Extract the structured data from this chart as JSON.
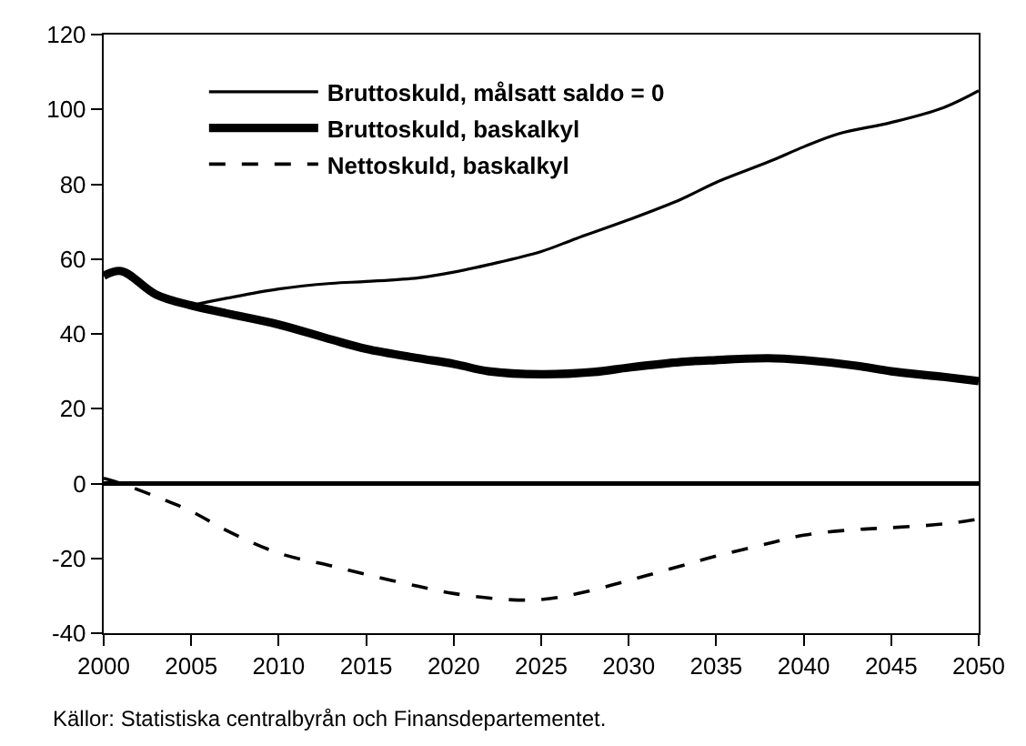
{
  "chart_data": {
    "type": "line",
    "annotations": [
      "Källor: Statistiska centralbyrån och Finansdepartementet."
    ],
    "series": [
      {
        "name": "Bruttoskuld, målsatt saldo = 0",
        "color": "#000000",
        "line_style": "solid",
        "x": [
          2005,
          2007,
          2010,
          2013,
          2015,
          2018,
          2020,
          2022,
          2025,
          2027,
          2030,
          2033,
          2035,
          2038,
          2040,
          2042,
          2045,
          2048,
          2050
        ],
        "values": [
          47.6,
          49.5,
          52,
          53.5,
          54,
          55,
          56.5,
          58.5,
          62,
          65.5,
          70.5,
          76,
          80.5,
          86,
          90,
          93.5,
          96.5,
          100.5,
          105
        ]
      },
      {
        "name": "Bruttoskuld, baskalkyl",
        "color": "#000000",
        "line_style": "solid",
        "x": [
          2000,
          2001,
          2003,
          2005,
          2007,
          2010,
          2013,
          2015,
          2018,
          2020,
          2022,
          2025,
          2028,
          2030,
          2033,
          2035,
          2038,
          2040,
          2043,
          2045,
          2048,
          2050
        ],
        "values": [
          55.5,
          56.8,
          50.5,
          47.6,
          45.5,
          42.5,
          38.5,
          36,
          33.5,
          32,
          30,
          29.2,
          29.8,
          31,
          32.5,
          33,
          33.5,
          33,
          31.5,
          30,
          28.5,
          27.4
        ]
      },
      {
        "name": "Nettoskuld, baskalkyl",
        "color": "#000000",
        "line_style": "dashed",
        "x": [
          2000,
          2001,
          2003,
          2005,
          2007,
          2010,
          2013,
          2015,
          2018,
          2020,
          2023,
          2025,
          2027,
          2030,
          2033,
          2035,
          2038,
          2040,
          2043,
          2045,
          2048,
          2050
        ],
        "values": [
          1.4,
          0,
          -3.5,
          -7.4,
          -12.5,
          -18.6,
          -22,
          -24.3,
          -27.5,
          -29.4,
          -31,
          -31,
          -29.5,
          -25.9,
          -22,
          -19.4,
          -16,
          -13.8,
          -12.3,
          -11.8,
          -10.8,
          -9.5
        ]
      }
    ],
    "xlim": [
      2000,
      2050
    ],
    "xticks": [
      2000,
      2005,
      2010,
      2015,
      2020,
      2025,
      2030,
      2035,
      2040,
      2045,
      2050
    ],
    "ylim": [
      -40,
      120
    ],
    "yticks": [
      -40,
      -20,
      0,
      20,
      40,
      60,
      80,
      100,
      120
    ],
    "ref_lines": [
      {
        "axis": "y",
        "value": 0,
        "color": "#000000"
      }
    ],
    "legend": "top left"
  }
}
